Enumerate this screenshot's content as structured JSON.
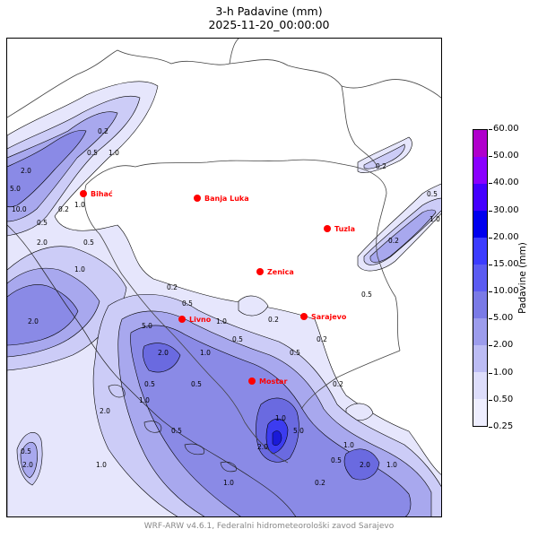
{
  "title": "3-h Padavine (mm)",
  "subtitle": "2025-11-20_00:00:00",
  "footer": "WRF-ARW v4.6.1, Federalni hidrometeorološki zavod Sarajevo",
  "colorbar": {
    "label": "Padavine (mm)",
    "levels": [
      "0.25",
      "0.50",
      "1.00",
      "2.00",
      "5.00",
      "10.00",
      "15.00",
      "20.00",
      "30.00",
      "40.00",
      "50.00",
      "60.00"
    ],
    "colors": [
      "#eeeeff",
      "#ddddfb",
      "#bcbcf4",
      "#9c9cec",
      "#7a7ae6",
      "#5c5cf2",
      "#3c3cff",
      "#0000ee",
      "#4400ff",
      "#8a00ff",
      "#b000cc"
    ]
  },
  "cities": [
    {
      "name": "Bihać",
      "icon": "city-dot"
    },
    {
      "name": "Banja Luka",
      "icon": "city-dot"
    },
    {
      "name": "Tuzla",
      "icon": "city-dot"
    },
    {
      "name": "Zenica",
      "icon": "city-dot"
    },
    {
      "name": "Livno",
      "icon": "city-dot"
    },
    {
      "name": "Sarajevo",
      "icon": "city-dot"
    },
    {
      "name": "Mostar",
      "icon": "city-dot"
    }
  ],
  "contour_labels": [
    "0.2",
    "1.0",
    "0.5",
    "2.0",
    "5.0",
    "10.0",
    "0.2",
    "0.5",
    "1.0",
    "2.0",
    "0.2",
    "0.5",
    "1.0",
    "2.0",
    "5.0",
    "2.0",
    "1.0",
    "0.5",
    "0.2",
    "0.5",
    "0.2",
    "1.0",
    "5.0",
    "2.0",
    "1.0",
    "0.5",
    "0.5",
    "1.0",
    "2.0",
    "1.0",
    "0.5",
    "1.0",
    "2.0",
    "1.0",
    "0.2",
    "0.5",
    "1.0",
    "0.2",
    "0.5",
    "0.5",
    "0.2",
    "0.2",
    "0.5",
    "1.0",
    "0.5",
    "2.0"
  ]
}
